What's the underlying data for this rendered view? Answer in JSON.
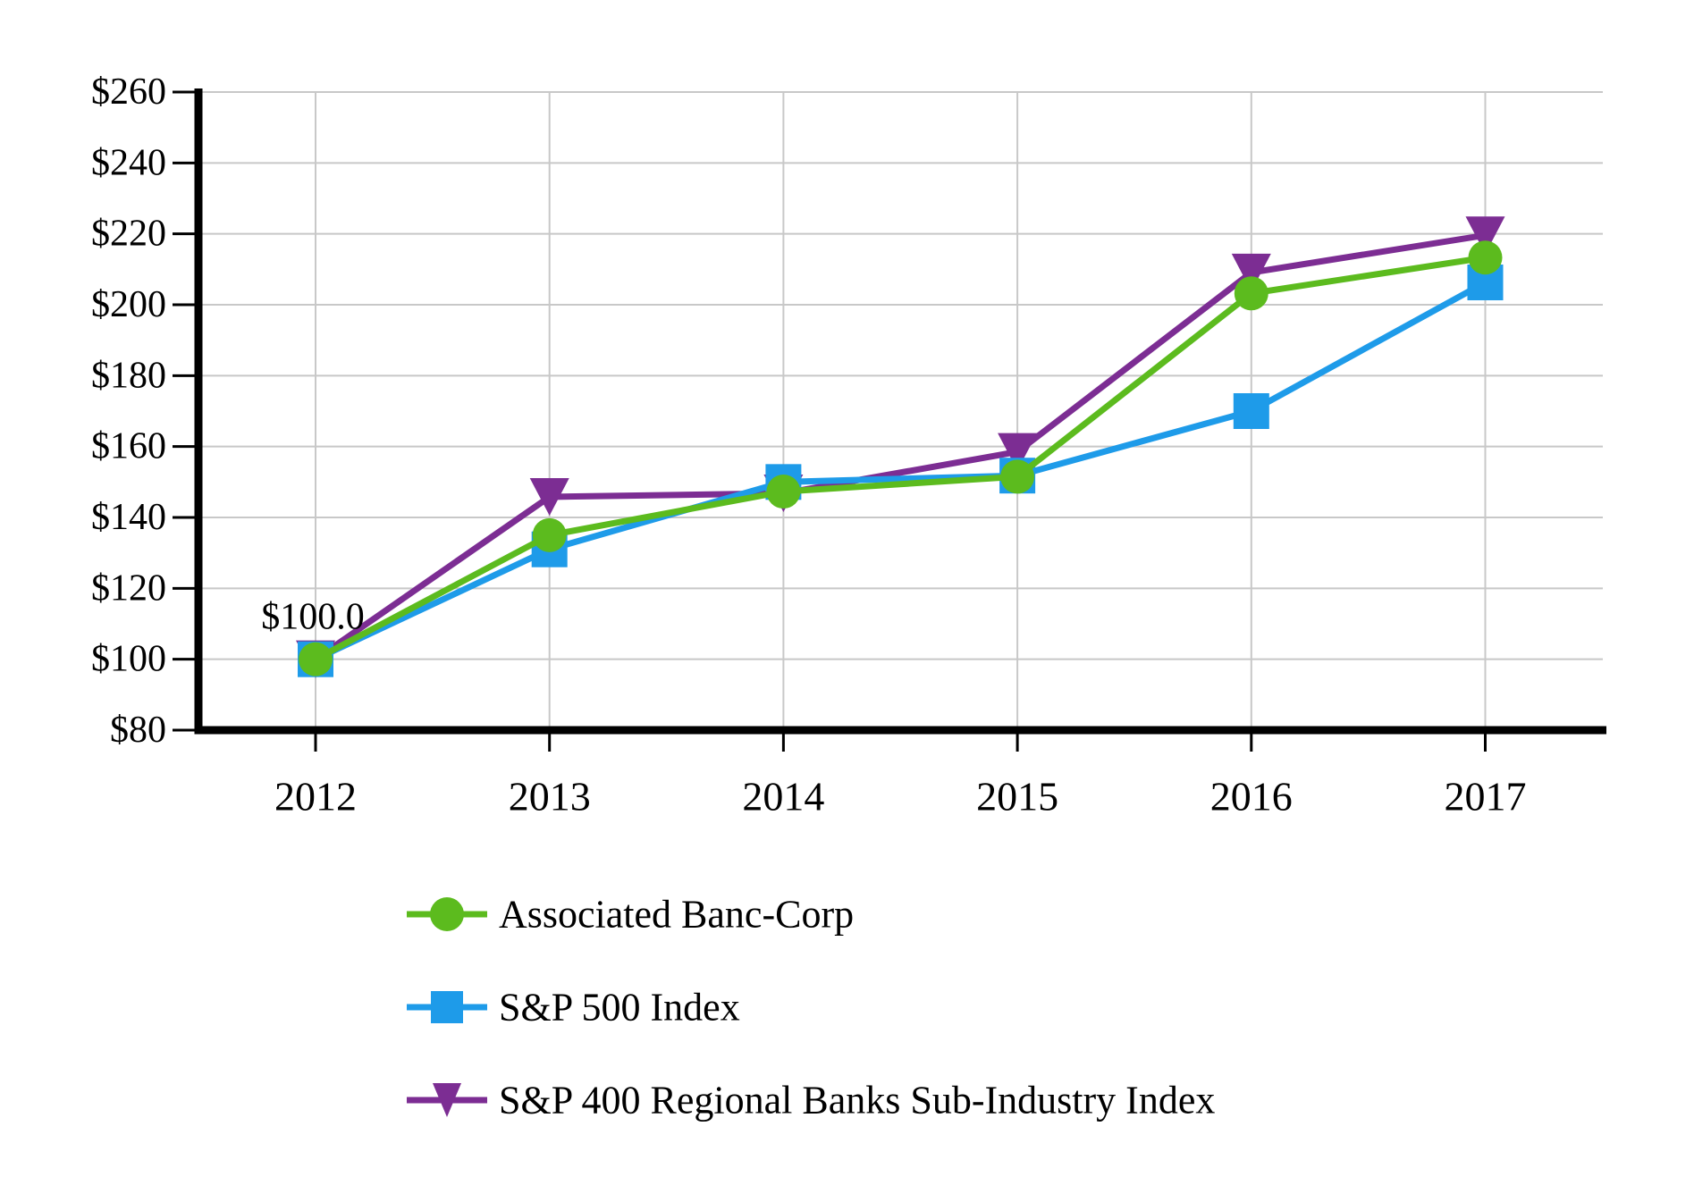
{
  "chart_data": {
    "type": "line",
    "title": "",
    "x_categories": [
      "2012",
      "2013",
      "2014",
      "2015",
      "2016",
      "2017"
    ],
    "y_tick_labels": [
      "$260",
      "$240",
      "$220",
      "$200",
      "$180",
      "$160",
      "$140",
      "$120",
      "$100",
      "$80"
    ],
    "y_axis": {
      "min": 80,
      "max": 260,
      "step": 20,
      "prefix": "$"
    },
    "grid": true,
    "legend_position": "bottom-left",
    "series": [
      {
        "name": "Associated Banc-Corp",
        "marker": "circle",
        "color": "#5CBB1E",
        "values": [
          100.0,
          135.0,
          147.3,
          151.5,
          203.2,
          213.3
        ]
      },
      {
        "name": "S&P 500 Index",
        "marker": "square",
        "color": "#1E9BE9",
        "values": [
          100.0,
          131.0,
          150.0,
          151.8,
          170.0,
          206.3
        ]
      },
      {
        "name": "S&P 400 Regional Banks Sub-Industry Index",
        "marker": "triangle-down",
        "color": "#7C2D93",
        "values": [
          100.0,
          145.8,
          146.8,
          158.5,
          209.1,
          219.6
        ]
      }
    ],
    "annotations": [
      {
        "text": "$100.0",
        "x_category": "2012",
        "value": 100.0
      }
    ],
    "colors": {
      "gridline": "#C8C8C8",
      "axis": "#000000",
      "text": "#000000",
      "background": "#FFFFFF"
    }
  }
}
